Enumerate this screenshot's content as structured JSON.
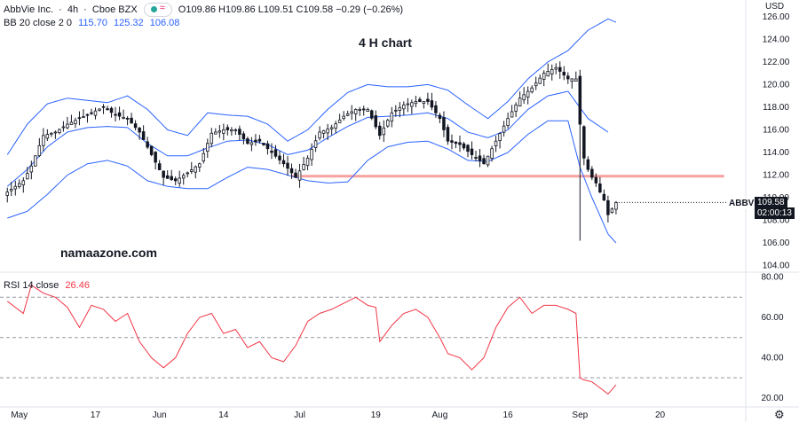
{
  "header": {
    "symbol": "AbbVie Inc.",
    "interval": "4h",
    "exchange": "Cboe BZX",
    "open": "O109.86",
    "high": "H109.86",
    "low": "L109.51",
    "close": "C109.58",
    "change": "−0.29 (−0.26%)"
  },
  "indicators": {
    "bb_label": "BB 20 close 2 0",
    "bb_values": [
      "115.70",
      "125.32",
      "106.08"
    ],
    "rsi_label": "RSI 14 close",
    "rsi_value": "26.46"
  },
  "currency": {
    "line1": "USD",
    "line2": ""
  },
  "annotations": {
    "chart_title": "4 H chart",
    "watermark": "namaazone.com"
  },
  "price_tag": {
    "symbol": "ABBV",
    "price": "109.58",
    "countdown": "02:00:13"
  },
  "colors": {
    "bb_line": "#2962ff",
    "rsi_line": "#f23645",
    "support_line": "#f7a1a1",
    "candle": "#131722",
    "price_tag_bg": "#131722"
  },
  "chart_data": [
    {
      "type": "candlestick",
      "title": "",
      "ylim": [
        103.5,
        127
      ],
      "yticks": [
        104,
        106,
        108,
        110,
        112,
        114,
        116,
        118,
        120,
        122,
        124,
        126
      ],
      "ytick_labels": [
        "104.00",
        "106.00",
        "108.00",
        "110.00",
        "112.00",
        "114.00",
        "116.00",
        "118.00",
        "120.00",
        "122.00",
        "124.00",
        "126.00"
      ],
      "x_count": 184,
      "xticks": [
        {
          "i": 3,
          "label": "May"
        },
        {
          "i": 22,
          "label": "17"
        },
        {
          "i": 38,
          "label": "Jun"
        },
        {
          "i": 54,
          "label": "14"
        },
        {
          "i": 73,
          "label": "Jul"
        },
        {
          "i": 92,
          "label": "19"
        },
        {
          "i": 108,
          "label": "Aug"
        },
        {
          "i": 125,
          "label": "16"
        },
        {
          "i": 143,
          "label": "Sep"
        },
        {
          "i": 163,
          "label": "20"
        }
      ],
      "close_points": [
        [
          0,
          110.5
        ],
        [
          4,
          111.5
        ],
        [
          6,
          112.8
        ],
        [
          9,
          115.5
        ],
        [
          12,
          115.8
        ],
        [
          15,
          116.5
        ],
        [
          18,
          117.0
        ],
        [
          21,
          117.5
        ],
        [
          24,
          118.0
        ],
        [
          27,
          117.3
        ],
        [
          30,
          117.0
        ],
        [
          33,
          115.8
        ],
        [
          36,
          113.8
        ],
        [
          39,
          111.8
        ],
        [
          42,
          111.5
        ],
        [
          45,
          112.2
        ],
        [
          48,
          113.0
        ],
        [
          51,
          115.7
        ],
        [
          54,
          116.0
        ],
        [
          57,
          116.0
        ],
        [
          60,
          114.8
        ],
        [
          63,
          115.0
        ],
        [
          66,
          114.0
        ],
        [
          69,
          113.0
        ],
        [
          72,
          111.8
        ],
        [
          75,
          113.5
        ],
        [
          78,
          115.8
        ],
        [
          81,
          116.2
        ],
        [
          84,
          117.2
        ],
        [
          87,
          117.8
        ],
        [
          90,
          117.8
        ],
        [
          93,
          115.5
        ],
        [
          96,
          117.5
        ],
        [
          99,
          118.2
        ],
        [
          102,
          118.5
        ],
        [
          105,
          118.5
        ],
        [
          108,
          117.0
        ],
        [
          110,
          115.0
        ],
        [
          113,
          114.7
        ],
        [
          116,
          113.8
        ],
        [
          119,
          113.0
        ],
        [
          122,
          115.0
        ],
        [
          125,
          117.0
        ],
        [
          128,
          118.8
        ],
        [
          131,
          119.7
        ],
        [
          134,
          121.0
        ],
        [
          137,
          121.5
        ],
        [
          140,
          120.5
        ],
        [
          142,
          120.5
        ],
        [
          143,
          116.5
        ],
        [
          144,
          113.5
        ],
        [
          145,
          112.5
        ],
        [
          146,
          111.8
        ],
        [
          147,
          111.3
        ],
        [
          148,
          110.5
        ],
        [
          149,
          109.8
        ],
        [
          150,
          108.5
        ],
        [
          151,
          109.0
        ],
        [
          152,
          109.58
        ]
      ],
      "candles_synthesized_from_close_path": true,
      "spikes": [
        {
          "i": 143,
          "low": 106.2,
          "high": 121.3
        }
      ],
      "bb_upper": [
        [
          0,
          113.8
        ],
        [
          5,
          116.5
        ],
        [
          10,
          118.3
        ],
        [
          15,
          118.8
        ],
        [
          20,
          118.6
        ],
        [
          25,
          118.4
        ],
        [
          30,
          119.0
        ],
        [
          35,
          117.8
        ],
        [
          40,
          116.0
        ],
        [
          45,
          115.5
        ],
        [
          50,
          117.5
        ],
        [
          55,
          117.3
        ],
        [
          60,
          117.2
        ],
        [
          65,
          116.5
        ],
        [
          70,
          115.0
        ],
        [
          75,
          116.0
        ],
        [
          80,
          117.8
        ],
        [
          85,
          119.3
        ],
        [
          90,
          120.0
        ],
        [
          95,
          119.8
        ],
        [
          100,
          119.8
        ],
        [
          105,
          120.0
        ],
        [
          110,
          119.5
        ],
        [
          115,
          118.2
        ],
        [
          120,
          117.0
        ],
        [
          125,
          118.5
        ],
        [
          130,
          120.5
        ],
        [
          135,
          122.0
        ],
        [
          140,
          123.0
        ],
        [
          145,
          124.8
        ],
        [
          150,
          125.8
        ],
        [
          152,
          125.5
        ]
      ],
      "bb_mid": [
        [
          0,
          111.0
        ],
        [
          5,
          112.5
        ],
        [
          10,
          114.5
        ],
        [
          15,
          115.8
        ],
        [
          20,
          116.2
        ],
        [
          25,
          116.3
        ],
        [
          30,
          116.2
        ],
        [
          35,
          114.8
        ],
        [
          40,
          113.7
        ],
        [
          45,
          113.7
        ],
        [
          50,
          114.4
        ],
        [
          55,
          115.0
        ],
        [
          60,
          115.1
        ],
        [
          65,
          114.7
        ],
        [
          70,
          113.8
        ],
        [
          75,
          114.2
        ],
        [
          80,
          115.3
        ],
        [
          85,
          116.3
        ],
        [
          90,
          117.1
        ],
        [
          95,
          117.2
        ],
        [
          100,
          117.3
        ],
        [
          105,
          117.5
        ],
        [
          110,
          117.0
        ],
        [
          115,
          115.8
        ],
        [
          120,
          115.3
        ],
        [
          125,
          116.0
        ],
        [
          130,
          117.8
        ],
        [
          135,
          119.0
        ],
        [
          140,
          119.4
        ],
        [
          145,
          117.0
        ],
        [
          150,
          115.8
        ]
      ],
      "bb_lower": [
        [
          0,
          108.2
        ],
        [
          5,
          108.8
        ],
        [
          10,
          110.3
        ],
        [
          15,
          112.0
        ],
        [
          20,
          113.0
        ],
        [
          25,
          113.3
        ],
        [
          30,
          112.8
        ],
        [
          35,
          111.5
        ],
        [
          40,
          111.0
        ],
        [
          45,
          110.8
        ],
        [
          50,
          110.8
        ],
        [
          55,
          111.8
        ],
        [
          60,
          112.7
        ],
        [
          65,
          112.5
        ],
        [
          70,
          112.0
        ],
        [
          75,
          111.5
        ],
        [
          80,
          111.3
        ],
        [
          85,
          111.4
        ],
        [
          90,
          113.3
        ],
        [
          95,
          114.5
        ],
        [
          100,
          114.9
        ],
        [
          105,
          115.0
        ],
        [
          110,
          114.3
        ],
        [
          115,
          113.3
        ],
        [
          120,
          113.2
        ],
        [
          125,
          114.0
        ],
        [
          130,
          115.6
        ],
        [
          135,
          116.8
        ],
        [
          140,
          116.8
        ],
        [
          143,
          112.7
        ],
        [
          146,
          110.0
        ],
        [
          150,
          106.8
        ],
        [
          152,
          106.0
        ]
      ],
      "support_line": {
        "price": 111.9,
        "from_i": 71,
        "to_i": 179
      },
      "last_price": 109.58
    },
    {
      "type": "line",
      "title": "",
      "ylim": [
        16,
        82
      ],
      "yticks": [
        20,
        40,
        60,
        80
      ],
      "ytick_labels": [
        "20.00",
        "40.00",
        "60.00",
        "80.00"
      ],
      "levels": [
        70,
        50,
        30
      ],
      "x": [
        0,
        4,
        6,
        9,
        12,
        15,
        18,
        21,
        24,
        27,
        30,
        33,
        36,
        39,
        42,
        45,
        48,
        51,
        54,
        57,
        60,
        63,
        66,
        69,
        72,
        75,
        78,
        81,
        84,
        87,
        90,
        92,
        93,
        96,
        99,
        102,
        105,
        108,
        110,
        113,
        116,
        119,
        122,
        125,
        128,
        131,
        134,
        137,
        140,
        142,
        143,
        144,
        146,
        148,
        150,
        152
      ],
      "values": [
        68,
        62,
        76,
        72,
        70,
        65,
        55,
        66,
        64,
        58,
        62,
        48,
        40,
        35,
        40,
        52,
        60,
        62,
        52,
        54,
        45,
        48,
        40,
        38,
        46,
        58,
        62,
        64,
        67,
        70,
        66,
        65,
        48,
        56,
        62,
        64,
        60,
        50,
        42,
        40,
        34,
        40,
        55,
        65,
        70,
        62,
        66,
        66,
        64,
        62,
        30,
        29,
        28,
        25,
        22,
        26.46
      ]
    }
  ]
}
